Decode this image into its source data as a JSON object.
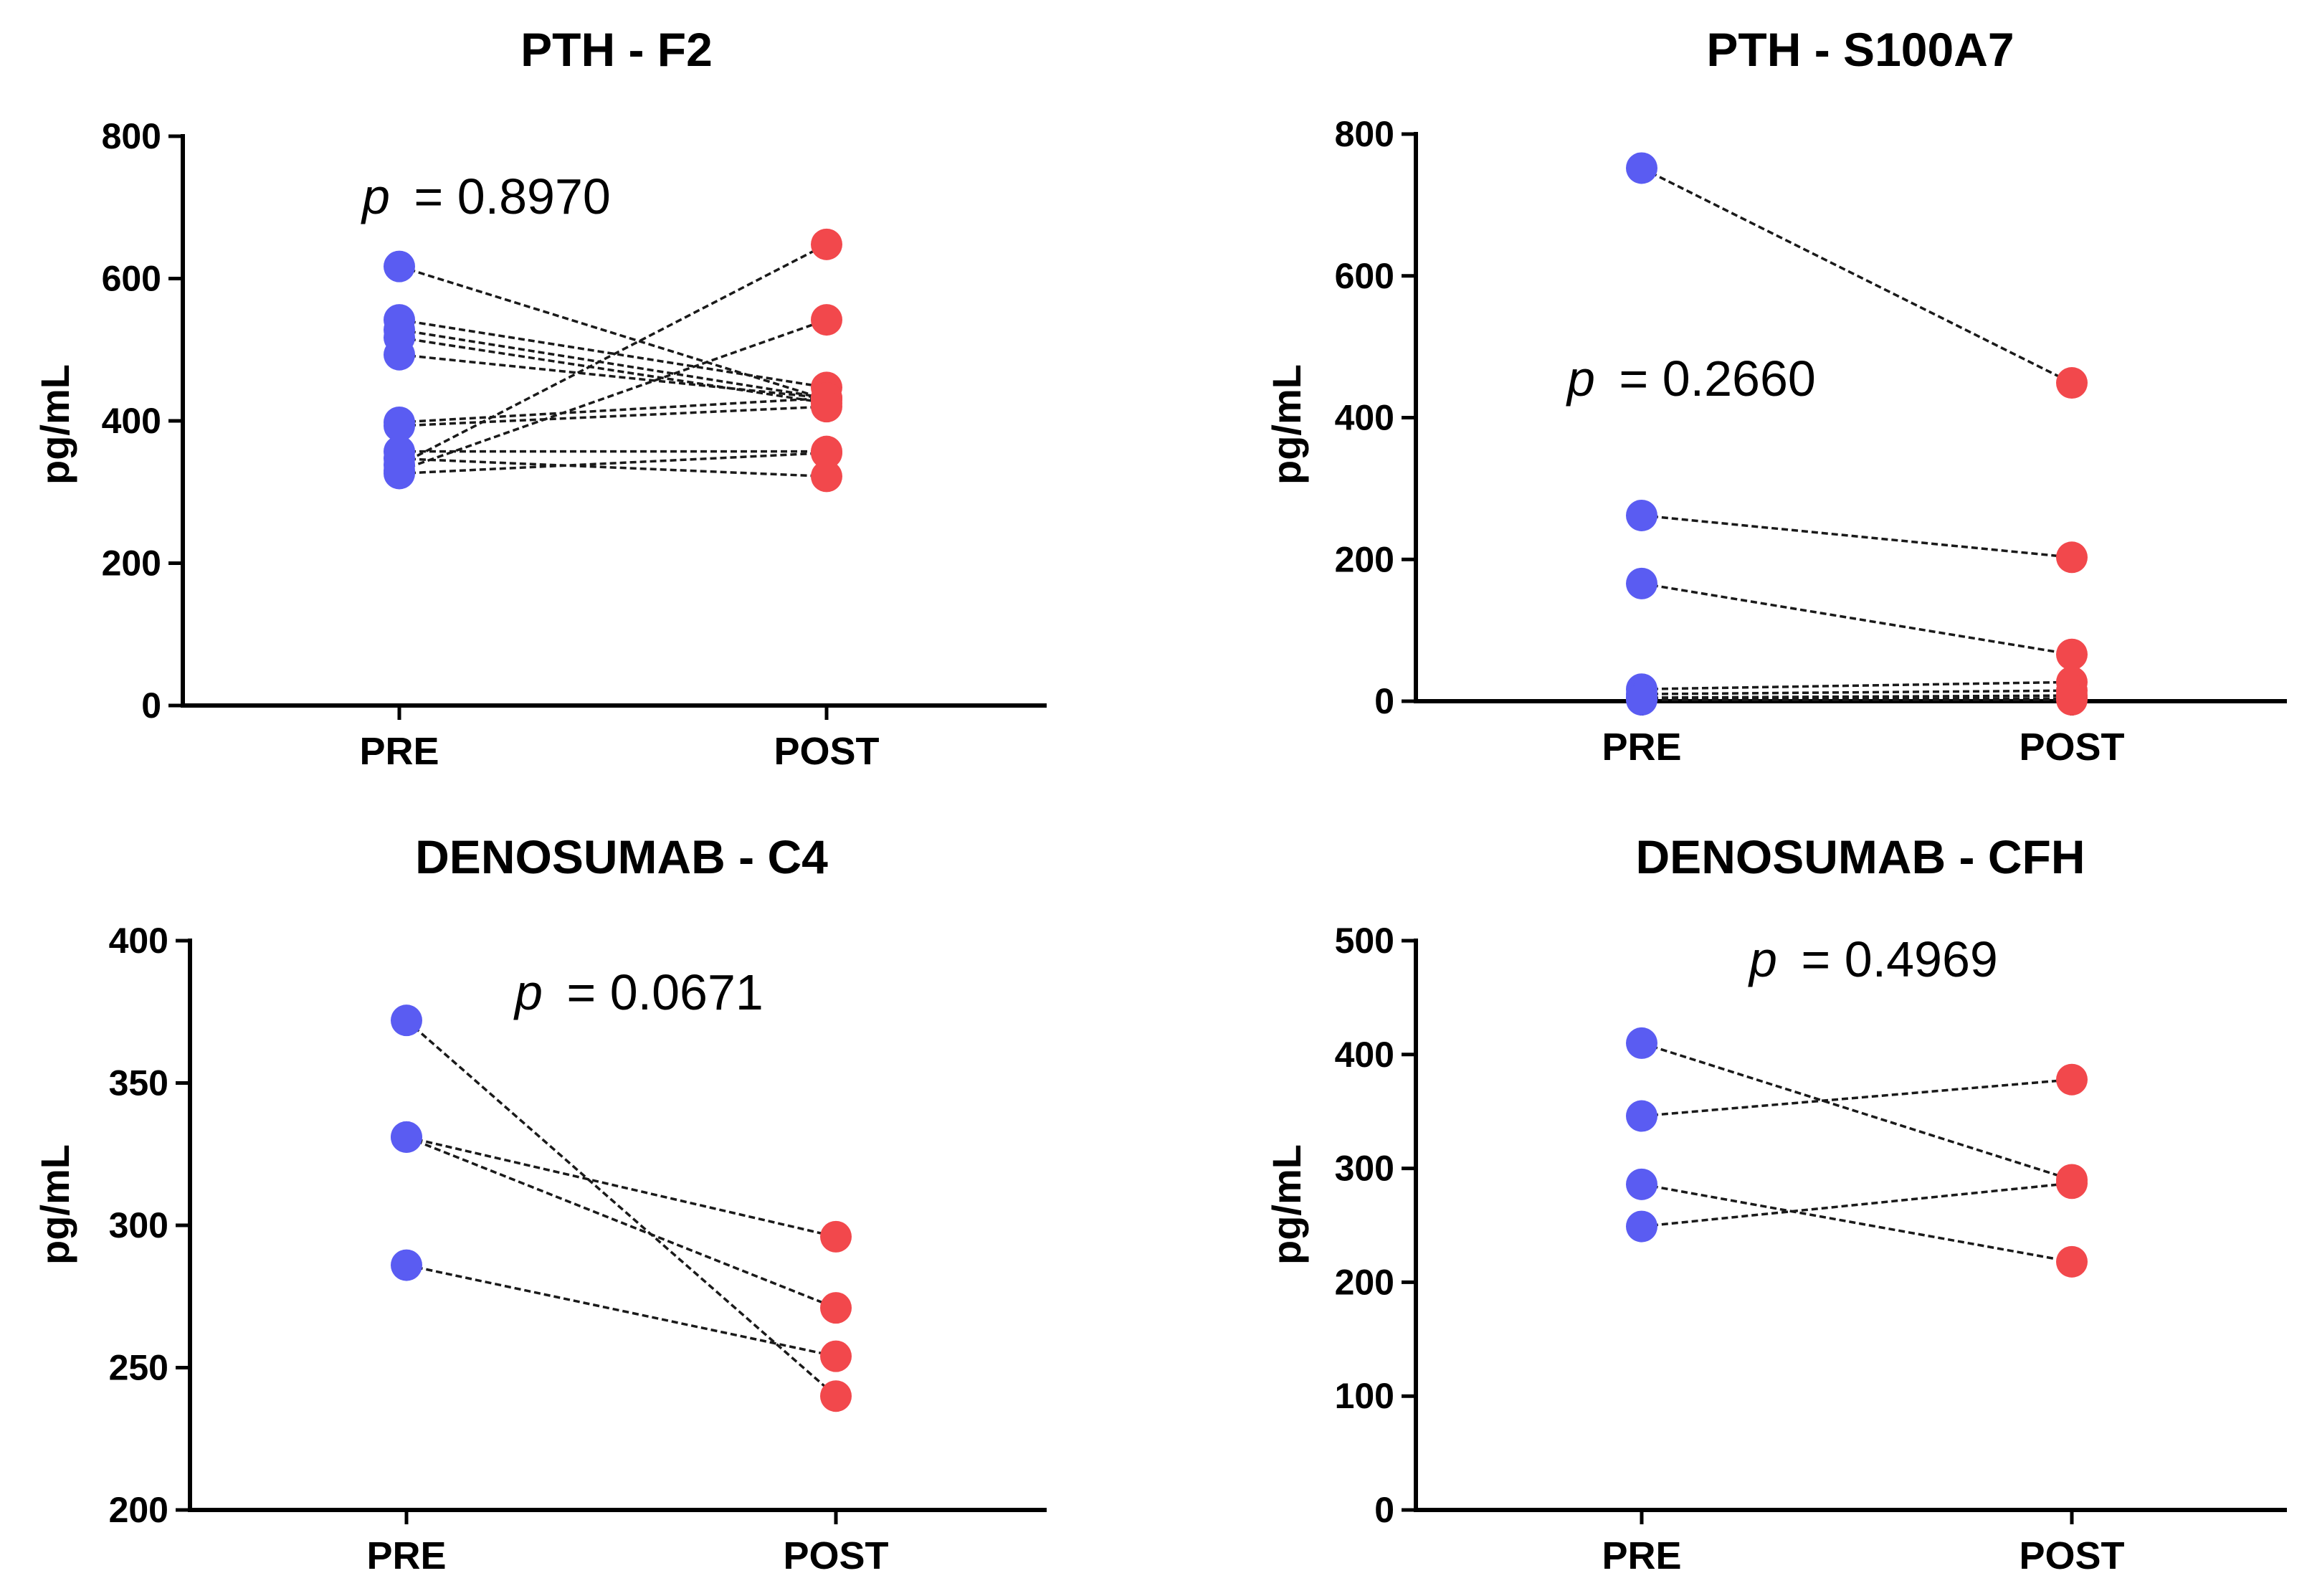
{
  "colors": {
    "pre": "#5a5cf2",
    "post": "#f2484c",
    "line": "#1a1a1a"
  },
  "chart_data": [
    {
      "type": "scatter",
      "subtype": "paired",
      "title": "PTH - F2",
      "xlabel": "",
      "ylabel": "pg/mL",
      "categories": [
        "PRE",
        "POST"
      ],
      "ylim": [
        0,
        800
      ],
      "yticks": [
        0,
        200,
        400,
        600,
        800
      ],
      "p_label": "p",
      "p_value": "= 0.8970",
      "pairs": [
        [
          617,
          430
        ],
        [
          542,
          447
        ],
        [
          528,
          432
        ],
        [
          517,
          425
        ],
        [
          493,
          432
        ],
        [
          398,
          432
        ],
        [
          393,
          420
        ],
        [
          357,
          357
        ],
        [
          347,
          322
        ],
        [
          338,
          648
        ],
        [
          330,
          542
        ],
        [
          326,
          355
        ]
      ]
    },
    {
      "type": "scatter",
      "subtype": "paired",
      "title": "PTH - S100A7",
      "xlabel": "",
      "ylabel": "pg/mL",
      "categories": [
        "PRE",
        "POST"
      ],
      "ylim": [
        0,
        800
      ],
      "yticks": [
        0,
        200,
        400,
        600,
        800
      ],
      "p_label": "p",
      "p_value": "= 0.2660",
      "pairs": [
        [
          752,
          449
        ],
        [
          262,
          203
        ],
        [
          166,
          66
        ],
        [
          17,
          27
        ],
        [
          10,
          15
        ],
        [
          5,
          8
        ],
        [
          3,
          4
        ],
        [
          2,
          2
        ]
      ]
    },
    {
      "type": "scatter",
      "subtype": "paired",
      "title": "DENOSUMAB - C4",
      "xlabel": "",
      "ylabel": "pg/mL",
      "categories": [
        "PRE",
        "POST"
      ],
      "ylim": [
        200,
        400
      ],
      "yticks": [
        200,
        250,
        300,
        350,
        400
      ],
      "p_label": "p",
      "p_value": "= 0.0671",
      "pairs": [
        [
          372,
          240
        ],
        [
          331,
          271
        ],
        [
          331,
          296
        ],
        [
          286,
          254
        ]
      ]
    },
    {
      "type": "scatter",
      "subtype": "paired",
      "title": "DENOSUMAB - CFH",
      "xlabel": "",
      "ylabel": "pg/mL",
      "categories": [
        "PRE",
        "POST"
      ],
      "ylim": [
        0,
        500
      ],
      "yticks": [
        0,
        100,
        200,
        300,
        400,
        500
      ],
      "p_label": "p",
      "p_value": "= 0.4969",
      "pairs": [
        [
          410,
          290
        ],
        [
          346,
          378
        ],
        [
          286,
          218
        ],
        [
          249,
          287
        ]
      ]
    }
  ]
}
